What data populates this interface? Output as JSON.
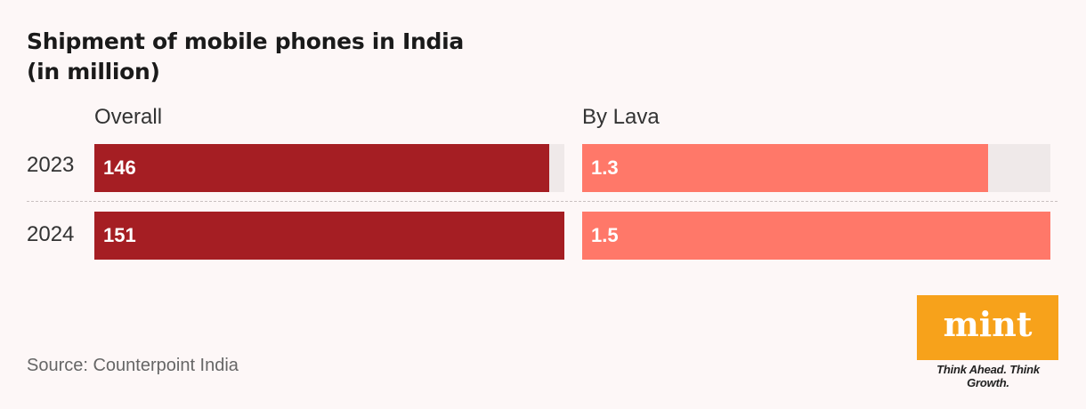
{
  "title_line1": "Shipment of mobile phones in India",
  "title_line2": "(in million)",
  "source": "Source: Counterpoint India",
  "logo": {
    "word": "mint",
    "tagline": "Think Ahead. Think Growth."
  },
  "colors": {
    "overall": "#a51e23",
    "lava": "#ff7869",
    "track": "#efe9e9",
    "brand": "#f7a21b"
  },
  "chart_data": [
    {
      "type": "bar",
      "title": "Overall",
      "categories": [
        "2023",
        "2024"
      ],
      "values": [
        146,
        151
      ],
      "value_labels": [
        "146",
        "151"
      ],
      "xlim": [
        0,
        151
      ]
    },
    {
      "type": "bar",
      "title": "By Lava",
      "categories": [
        "2023",
        "2024"
      ],
      "values": [
        1.3,
        1.5
      ],
      "value_labels": [
        "1.3",
        "1.5"
      ],
      "xlim": [
        0,
        1.5
      ]
    }
  ]
}
